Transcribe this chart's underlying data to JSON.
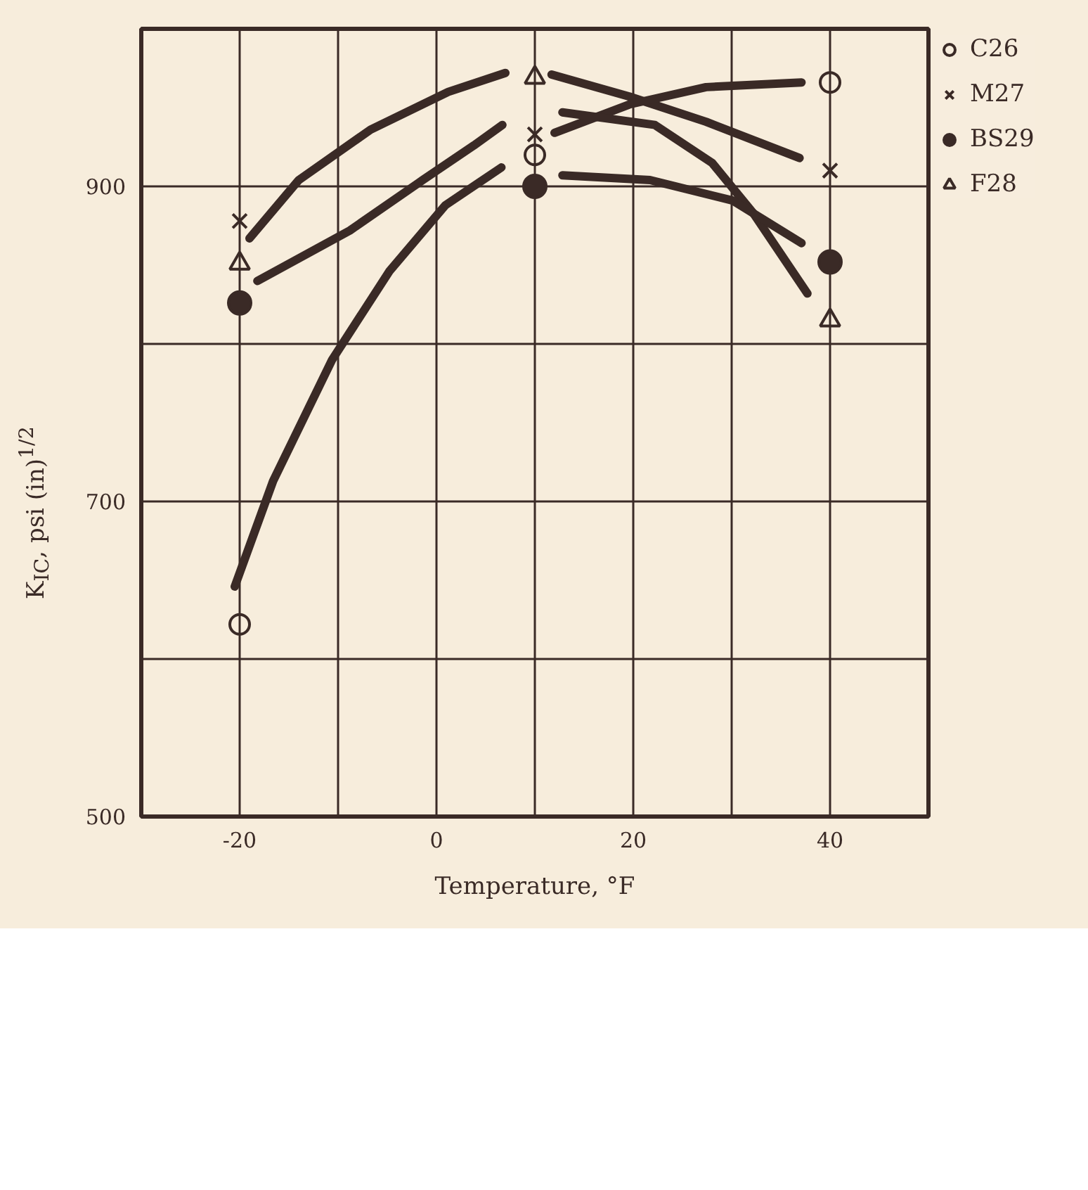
{
  "chart_data": {
    "type": "scatter",
    "xlabel": "Temperature, °F",
    "ylabel": "K$_{IC}$, psi (in)$^{1/2}$",
    "xlim": [
      -30,
      50
    ],
    "ylim": [
      500,
      1000
    ],
    "xticks": [
      -20,
      {
        "value": -10,
        "label": null
      },
      0,
      {
        "value": 10,
        "label": null
      },
      20,
      {
        "value": 30,
        "label": null
      },
      40
    ],
    "yticks": [
      500,
      {
        "value": 600,
        "label": null
      },
      700,
      {
        "value": 800,
        "label": null
      },
      900
    ],
    "grid": true,
    "legend": "right",
    "line_style": "solid",
    "series": [
      {
        "name": "C26",
        "marker": "circle-open",
        "color": "#3a2a26",
        "x": [
          -20,
          10,
          40
        ],
        "values": [
          622,
          920,
          966
        ]
      },
      {
        "name": "M27",
        "marker": "cross",
        "color": "#3a2a26",
        "x": [
          -20,
          10,
          40
        ],
        "values": [
          878,
          933,
          910
        ]
      },
      {
        "name": "BS29",
        "marker": "circle",
        "color": "#3a2a26",
        "x": [
          -20,
          10,
          40
        ],
        "values": [
          826,
          900,
          852
        ]
      },
      {
        "name": "F28",
        "marker": "triangle-open",
        "color": "#3a2a26",
        "x": [
          -20,
          10,
          40
        ],
        "values": [
          851,
          969,
          815
        ]
      },
      {
        "type": "line",
        "color": "#3a2a26",
        "x": [
          -20.5,
          -16.6,
          -10.6,
          -4.8,
          0.9,
          6.6
        ],
        "values": [
          646,
          713,
          790,
          846,
          888,
          912
        ]
      },
      {
        "type": "line",
        "color": "#3a2a26",
        "x": [
          -19.0,
          -14.0,
          -6.7,
          1.2,
          7.0
        ],
        "values": [
          867,
          904,
          936,
          960,
          972
        ]
      },
      {
        "type": "line",
        "color": "#3a2a26",
        "x": [
          -18.2,
          -8.8,
          -1.4,
          3.8,
          6.7
        ],
        "values": [
          840,
          872,
          904,
          926,
          939
        ]
      },
      {
        "type": "line",
        "color": "#3a2a26",
        "x": [
          11.7,
          19.6,
          27.4,
          36.9
        ],
        "values": [
          971,
          957,
          941,
          918
        ]
      },
      {
        "type": "line",
        "color": "#3a2a26",
        "x": [
          12.0,
          19.6,
          27.4,
          37.1
        ],
        "values": [
          934,
          952,
          963,
          966
        ]
      },
      {
        "type": "line",
        "color": "#3a2a26",
        "x": [
          12.8,
          22.2,
          28.0,
          32.2,
          37.7
        ],
        "values": [
          947,
          939,
          915,
          883,
          832
        ]
      },
      {
        "type": "line",
        "color": "#3a2a26",
        "x": [
          12.8,
          21.7,
          30.1,
          37.1
        ],
        "values": [
          907,
          904,
          891,
          864
        ]
      }
    ]
  }
}
